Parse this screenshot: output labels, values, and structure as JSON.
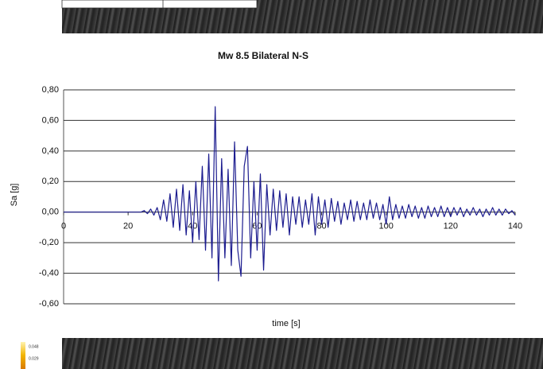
{
  "chart_data": {
    "type": "line",
    "title": "Mw 8.5 Bilateral N-S",
    "xlabel": "time [s]",
    "ylabel": "Sa [g]",
    "x": [
      0,
      1,
      2,
      3,
      4,
      5,
      6,
      7,
      8,
      9,
      10,
      11,
      12,
      13,
      14,
      15,
      16,
      17,
      18,
      19,
      20,
      21,
      22,
      23,
      24,
      25,
      26,
      27,
      28,
      29,
      30,
      31,
      32,
      33,
      34,
      35,
      36,
      37,
      38,
      39,
      40,
      41,
      42,
      43,
      44,
      45,
      46,
      47,
      48,
      49,
      50,
      51,
      52,
      53,
      54,
      55,
      56,
      57,
      58,
      59,
      60,
      61,
      62,
      63,
      64,
      65,
      66,
      67,
      68,
      69,
      70,
      71,
      72,
      73,
      74,
      75,
      76,
      77,
      78,
      79,
      80,
      81,
      82,
      83,
      84,
      85,
      86,
      87,
      88,
      89,
      90,
      91,
      92,
      93,
      94,
      95,
      96,
      97,
      98,
      99,
      100,
      101,
      102,
      103,
      104,
      105,
      106,
      107,
      108,
      109,
      110,
      111,
      112,
      113,
      114,
      115,
      116,
      117,
      118,
      119,
      120,
      121,
      122,
      123,
      124,
      125,
      126,
      127,
      128,
      129,
      130,
      131,
      132,
      133,
      134,
      135,
      136,
      137,
      138,
      139,
      140
    ],
    "values": [
      0,
      0,
      0,
      0,
      0,
      0,
      0,
      0,
      0,
      0,
      0,
      0,
      0,
      0,
      0,
      0,
      0,
      0,
      0,
      0,
      0,
      0,
      0,
      0,
      0,
      0.01,
      -0.01,
      0.02,
      -0.02,
      0.03,
      -0.05,
      0.08,
      -0.06,
      0.12,
      -0.1,
      0.15,
      -0.12,
      0.18,
      -0.15,
      0.14,
      -0.2,
      0.2,
      -0.18,
      0.3,
      -0.25,
      0.38,
      -0.3,
      0.69,
      -0.45,
      0.35,
      -0.3,
      0.28,
      -0.35,
      0.46,
      -0.25,
      -0.42,
      0.3,
      0.43,
      -0.3,
      0.2,
      -0.25,
      0.25,
      -0.38,
      0.18,
      -0.15,
      0.15,
      -0.12,
      0.14,
      -0.1,
      0.12,
      -0.15,
      0.1,
      -0.08,
      0.1,
      -0.1,
      0.08,
      -0.08,
      0.12,
      -0.15,
      0.1,
      -0.08,
      0.08,
      -0.1,
      0.09,
      -0.06,
      0.07,
      -0.08,
      0.06,
      -0.05,
      0.08,
      -0.06,
      0.07,
      -0.05,
      0.06,
      -0.05,
      0.08,
      -0.04,
      0.06,
      -0.05,
      0.05,
      -0.08,
      0.1,
      -0.05,
      0.05,
      -0.04,
      0.04,
      -0.04,
      0.05,
      -0.03,
      0.04,
      -0.04,
      0.03,
      -0.04,
      0.04,
      -0.03,
      0.03,
      -0.03,
      0.04,
      -0.03,
      0.03,
      -0.03,
      0.03,
      -0.02,
      0.03,
      -0.03,
      0.02,
      -0.02,
      0.03,
      -0.02,
      0.02,
      -0.03,
      0.02,
      -0.02,
      0.03,
      -0.02,
      0.02,
      -0.02,
      0.02,
      -0.01,
      0.01,
      -0.02
    ],
    "color": "#1c1c8f",
    "xlim": [
      0,
      140
    ],
    "xticks": [
      0,
      20,
      40,
      60,
      80,
      100,
      120,
      140
    ],
    "ylim": [
      -0.6,
      0.8
    ],
    "yticks": [
      {
        "value": -0.6,
        "label": "-0,60"
      },
      {
        "value": -0.4,
        "label": "-0,40"
      },
      {
        "value": -0.2,
        "label": "-0,20"
      },
      {
        "value": 0,
        "label": "0,00"
      },
      {
        "value": 0.2,
        "label": "0,20"
      },
      {
        "value": 0.4,
        "label": "0,40"
      },
      {
        "value": 0.6,
        "label": "0,60"
      },
      {
        "value": 0.8,
        "label": "0,80"
      }
    ],
    "grid": true
  },
  "colorbar_labels": [
    "0.048",
    "0.029"
  ]
}
